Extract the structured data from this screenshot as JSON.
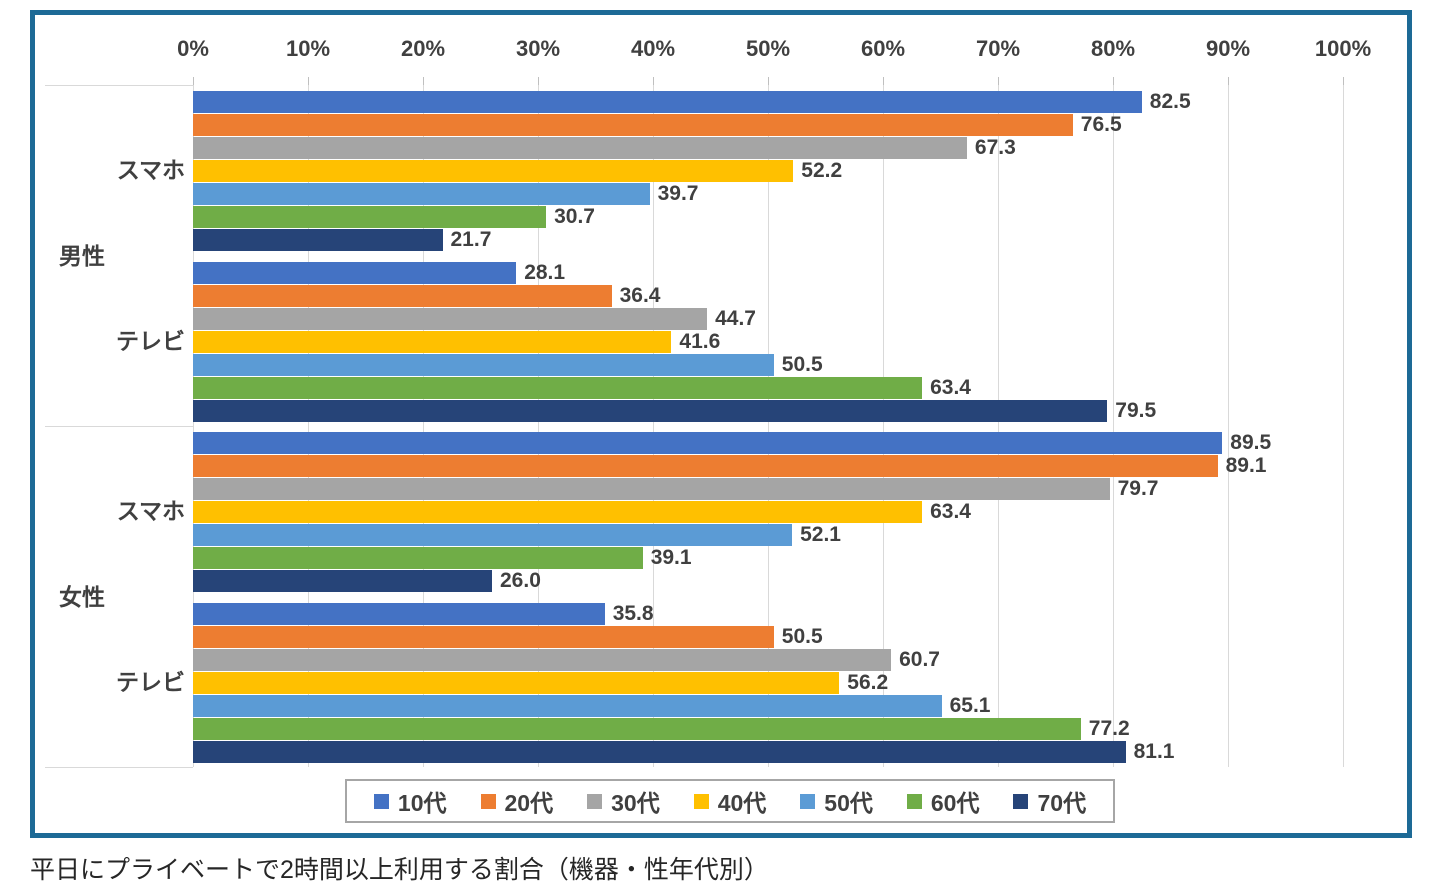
{
  "caption": "平日にプライベートで2時間以上利用する割合（機器・性年代別）",
  "colors": {
    "frame_border": "#1d6a96",
    "gridline": "#d9d9d9",
    "axis_text": "#404040",
    "legend_border": "#a6a6a6"
  },
  "chart_data": {
    "type": "bar",
    "orientation": "horizontal",
    "title": "平日にプライベートで2時間以上利用する割合（機器・性年代別）",
    "value_axis": {
      "position": "top",
      "min": 0,
      "max": 100,
      "grid": true,
      "ticks": [
        "0%",
        "10%",
        "20%",
        "30%",
        "40%",
        "50%",
        "60%",
        "70%",
        "80%",
        "90%",
        "100%"
      ]
    },
    "series": [
      {
        "name": "10代",
        "color": "#4472C4"
      },
      {
        "name": "20代",
        "color": "#ED7D31"
      },
      {
        "name": "30代",
        "color": "#A5A5A5"
      },
      {
        "name": "40代",
        "color": "#FFC000"
      },
      {
        "name": "50代",
        "color": "#5B9BD5"
      },
      {
        "name": "60代",
        "color": "#70AD47"
      },
      {
        "name": "70代",
        "color": "#264478"
      }
    ],
    "gender_labels": [
      "男性",
      "女性"
    ],
    "groups": [
      {
        "gender": "男性",
        "device": "スマホ",
        "values": [
          "82.5",
          "76.5",
          "67.3",
          "52.2",
          "39.7",
          "30.7",
          "21.7"
        ]
      },
      {
        "gender": "男性",
        "device": "テレビ",
        "values": [
          "28.1",
          "36.4",
          "44.7",
          "41.6",
          "50.5",
          "63.4",
          "79.5"
        ]
      },
      {
        "gender": "女性",
        "device": "スマホ",
        "values": [
          "89.5",
          "89.1",
          "79.7",
          "63.4",
          "52.1",
          "39.1",
          "26.0"
        ]
      },
      {
        "gender": "女性",
        "device": "テレビ",
        "values": [
          "35.8",
          "50.5",
          "60.7",
          "56.2",
          "65.1",
          "77.2",
          "81.1"
        ]
      }
    ],
    "legend": {
      "position": "bottom",
      "items": [
        "10代",
        "20代",
        "30代",
        "40代",
        "50代",
        "60代",
        "70代"
      ]
    }
  }
}
